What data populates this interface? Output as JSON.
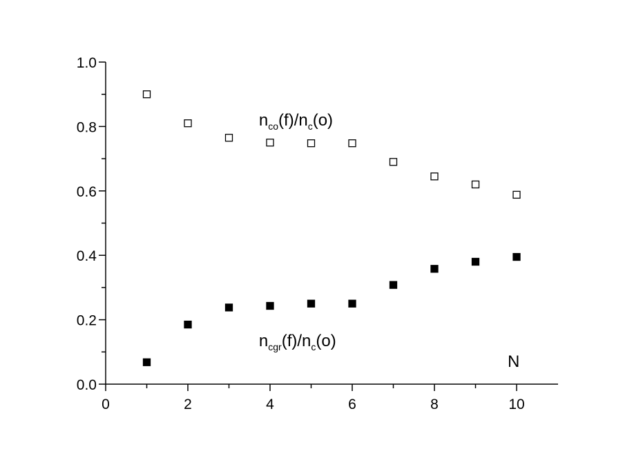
{
  "chart_data": {
    "type": "scatter",
    "x": [
      1,
      2,
      3,
      4,
      5,
      6,
      7,
      8,
      9,
      10
    ],
    "series": [
      {
        "values": [
          0.9,
          0.81,
          0.765,
          0.75,
          0.748,
          0.748,
          0.69,
          0.645,
          0.62,
          0.588
        ],
        "marker": "open-square",
        "color": "#000000"
      },
      {
        "values": [
          0.068,
          0.185,
          0.238,
          0.243,
          0.25,
          0.25,
          0.308,
          0.358,
          0.38,
          0.395
        ],
        "marker": "filled-square",
        "color": "#000000"
      }
    ],
    "annotations": [
      {
        "id": "upper",
        "parts": [
          {
            "text": "n",
            "sub": false
          },
          {
            "text": "co",
            "sub": true
          },
          {
            "text": "(f)/n",
            "sub": false
          },
          {
            "text": "c",
            "sub": true
          },
          {
            "text": "(o)",
            "sub": false
          }
        ],
        "at": [
          4.2,
          0.82
        ]
      },
      {
        "id": "lower",
        "parts": [
          {
            "text": "n",
            "sub": false
          },
          {
            "text": "cgr",
            "sub": true
          },
          {
            "text": "(f)/n",
            "sub": false
          },
          {
            "text": "c",
            "sub": true
          },
          {
            "text": "(o)",
            "sub": false
          }
        ],
        "at": [
          4.2,
          0.135
        ]
      }
    ],
    "xlabel": "N",
    "ylabel": "",
    "title": "",
    "xlim": [
      0,
      11
    ],
    "ylim": [
      0,
      1.0
    ],
    "xticks": [
      0,
      2,
      4,
      6,
      8,
      10
    ],
    "xtick_labels": [
      "0",
      "2",
      "4",
      "6",
      "8",
      "10"
    ],
    "yticks": [
      0.0,
      0.2,
      0.4,
      0.6,
      0.8,
      1.0
    ],
    "ytick_labels": [
      "0.0",
      "0.2",
      "0.4",
      "0.6",
      "0.8",
      "1.0"
    ],
    "grid": false
  }
}
